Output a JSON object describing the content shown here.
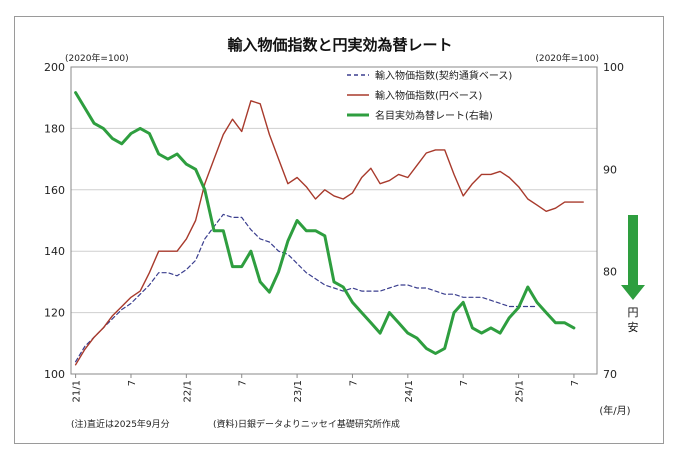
{
  "chart_data": {
    "type": "line",
    "title": "輸入物価指数と円実効為替レート",
    "left_unit": "(2020年=100)",
    "right_unit": "(2020年=100)",
    "x_unit": "(年/月)",
    "x_ticks": [
      "21/1",
      "7",
      "22/1",
      "7",
      "23/1",
      "7",
      "24/1",
      "7",
      "25/1",
      "7"
    ],
    "y_left": {
      "min": 100,
      "max": 200,
      "ticks": [
        100,
        120,
        140,
        160,
        180,
        200
      ]
    },
    "y_right": {
      "min": 70,
      "max": 100,
      "ticks": [
        70,
        80,
        90,
        100
      ]
    },
    "grid": true,
    "legend_position": "top-right",
    "arrow_label": [
      "円",
      "安"
    ],
    "notes": [
      "(注)直近は2025年9月分",
      "(資料)日銀データよりニッセイ基礎研究所作成"
    ],
    "series": [
      {
        "name": "輸入物価指数(契約通貨ベース)",
        "axis": "left",
        "style": "dashed",
        "color": "#3b3f8f",
        "values": [
          104,
          109,
          112,
          115,
          118,
          121,
          123,
          126,
          129,
          133,
          133,
          132,
          134,
          137,
          144,
          148,
          152,
          151,
          151,
          147,
          144,
          143,
          140,
          139,
          136,
          133,
          131,
          129,
          128,
          127,
          128,
          127,
          127,
          127,
          128,
          129,
          129,
          128,
          128,
          127,
          126,
          126,
          125,
          125,
          125,
          124,
          123,
          122,
          122,
          122,
          122
        ]
      },
      {
        "name": "輸入物価指数(円ベース)",
        "axis": "left",
        "style": "solid",
        "color": "#a83a2c",
        "values": [
          103,
          108,
          112,
          115,
          119,
          122,
          125,
          127,
          133,
          140,
          140,
          140,
          144,
          150,
          162,
          170,
          178,
          183,
          179,
          189,
          188,
          178,
          170,
          162,
          164,
          161,
          157,
          160,
          158,
          157,
          159,
          164,
          167,
          162,
          163,
          165,
          164,
          168,
          172,
          173,
          173,
          165,
          158,
          162,
          165,
          165,
          166,
          164,
          161,
          157,
          155,
          153,
          154,
          156,
          156,
          156
        ]
      },
      {
        "name": "名目実効為替レート(右軸)",
        "axis": "right",
        "style": "solid",
        "color": "#2e9e3f",
        "values": [
          97.5,
          96,
          94.5,
          94,
          93,
          92.5,
          93.5,
          94,
          93.5,
          91.5,
          91,
          91.5,
          90.5,
          90,
          88,
          84,
          84,
          80.5,
          80.5,
          82,
          79,
          78,
          80,
          83,
          85,
          84,
          84,
          83.5,
          79,
          78.5,
          77,
          76,
          75,
          74,
          76,
          75,
          74,
          73.5,
          72.5,
          72,
          72.5,
          76,
          77,
          74.5,
          74,
          74.5,
          74,
          75.5,
          76.5,
          78.5,
          77,
          76,
          75,
          75,
          74.5
        ]
      }
    ]
  }
}
